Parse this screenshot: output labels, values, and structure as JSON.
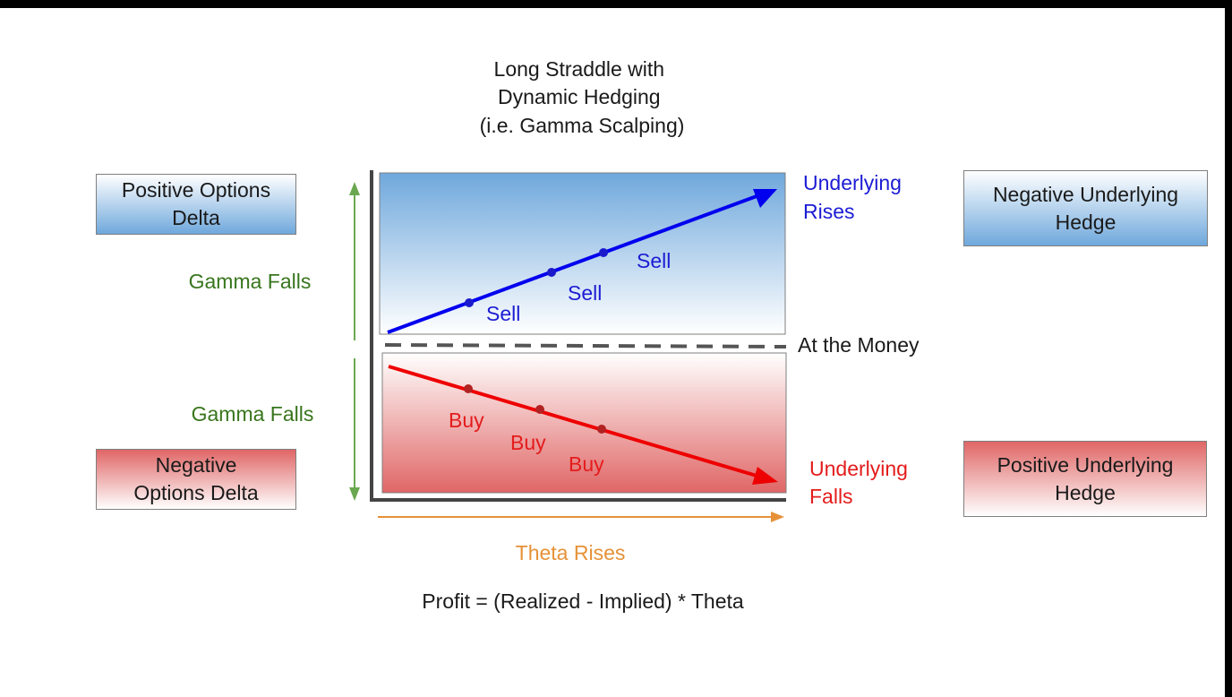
{
  "title_lines": [
    "Long Straddle with",
    "Dynamic Hedging",
    "(i.e. Gamma Scalping)"
  ],
  "boxes": {
    "positive_options_delta": [
      "Positive Options",
      "Delta"
    ],
    "negative_options_delta": [
      "Negative",
      "Options Delta"
    ],
    "negative_underlying_hedge": [
      "Negative Underlying",
      "Hedge"
    ],
    "positive_underlying_hedge": [
      "Positive Underlying",
      "Hedge"
    ]
  },
  "labels": {
    "gamma_falls_top": "Gamma Falls",
    "gamma_falls_bottom": "Gamma Falls",
    "underlying_rises": [
      "Underlying",
      "Rises"
    ],
    "underlying_falls": [
      "Underlying",
      "Falls"
    ],
    "at_the_money": "At the Money",
    "theta_rises": "Theta Rises",
    "profit_formula": "Profit = (Realized - Implied) * Theta"
  },
  "rise_points": [
    "Sell",
    "Sell",
    "Sell"
  ],
  "fall_points": [
    "Buy",
    "Buy",
    "Buy"
  ],
  "colors": {
    "blue_line": "#0000ee",
    "red_line": "#ee0000",
    "green": "#38761d",
    "green_arrow": "#6aa84f",
    "orange": "#e69138",
    "dashed": "#555555",
    "blue_fill": "#6fa8dc",
    "red_fill": "#e06666"
  }
}
